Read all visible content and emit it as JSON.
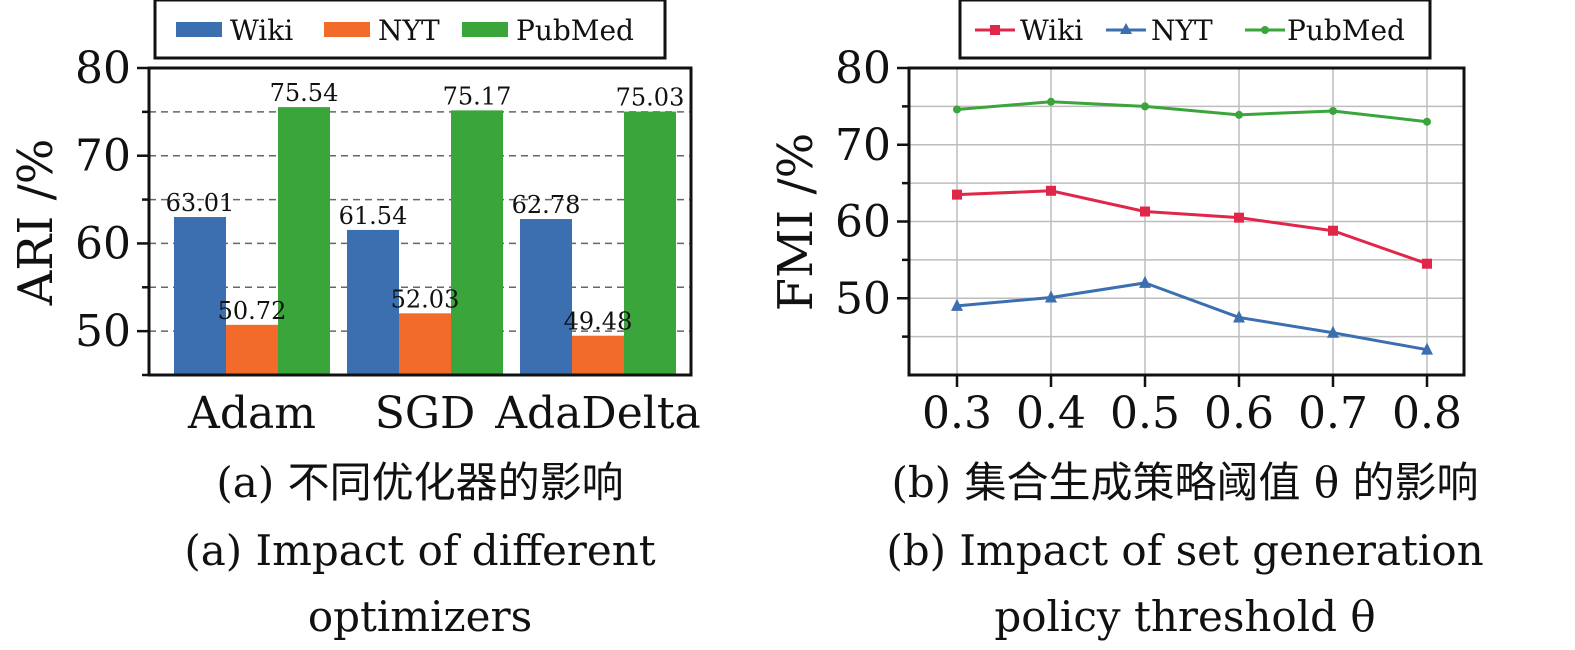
{
  "chart_data": [
    {
      "type": "bar",
      "categories": [
        "Adam",
        "SGD",
        "AdaDelta"
      ],
      "series": [
        {
          "name": "Wiki",
          "color": "#3b6fb0",
          "values": [
            63.01,
            61.54,
            62.78
          ]
        },
        {
          "name": "NYT",
          "color": "#f26b2a",
          "values": [
            50.72,
            52.03,
            49.48
          ]
        },
        {
          "name": "PubMed",
          "color": "#3aa53a",
          "values": [
            75.54,
            75.17,
            75.03
          ]
        }
      ],
      "data_labels": [
        [
          "63.01",
          "50.72",
          "75.54"
        ],
        [
          "61.54",
          "52.03",
          "75.17"
        ],
        [
          "62.78",
          "49.48",
          "75.03"
        ]
      ],
      "ylabel": "ARI /%",
      "ylim": [
        45,
        80
      ],
      "yticks": [
        50,
        60,
        70,
        80
      ],
      "ytick_labels": [
        "50",
        "60",
        "70",
        "80"
      ],
      "grid": "horizontal dashed",
      "legend": "top",
      "caption_cn": "(a) 不同优化器的影响",
      "caption_en_1": "(a) Impact of different",
      "caption_en_2": "optimizers"
    },
    {
      "type": "line",
      "x": [
        0.3,
        0.4,
        0.5,
        0.6,
        0.7,
        0.8
      ],
      "xtick_labels": [
        "0.3",
        "0.4",
        "0.5",
        "0.6",
        "0.7",
        "0.8"
      ],
      "series": [
        {
          "name": "Wiki",
          "color": "#e0274a",
          "marker": "square",
          "values": [
            63.5,
            64.0,
            61.3,
            60.5,
            58.8,
            54.5
          ]
        },
        {
          "name": "NYT",
          "color": "#3b6fb0",
          "marker": "triangle",
          "values": [
            49.0,
            50.1,
            52.0,
            47.5,
            45.5,
            43.3
          ]
        },
        {
          "name": "PubMed",
          "color": "#3aa53a",
          "marker": "circle",
          "values": [
            74.6,
            75.6,
            75.0,
            73.9,
            74.4,
            73.0
          ]
        }
      ],
      "ylabel": "FMI /%",
      "ylim": [
        40,
        80
      ],
      "yticks": [
        50,
        60,
        70,
        80
      ],
      "ytick_labels": [
        "50",
        "60",
        "70",
        "80"
      ],
      "grid": "both",
      "legend": "top",
      "caption_cn": "(b) 集合生成策略阈值 θ 的影响",
      "caption_en_1": "(b) Impact of set generation",
      "caption_en_2": "policy threshold θ"
    }
  ]
}
